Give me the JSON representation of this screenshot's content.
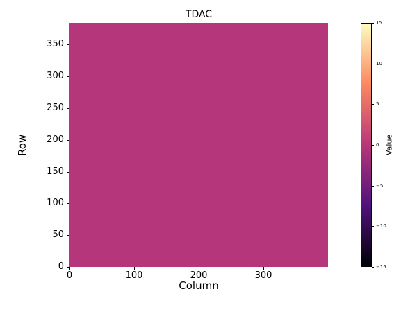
{
  "chart_data": {
    "type": "heatmap",
    "title": "TDAC",
    "xlabel": "Column",
    "ylabel": "Row",
    "x_range": [
      0,
      400
    ],
    "y_range": [
      0,
      384
    ],
    "x_ticks": [
      0,
      100,
      200,
      300
    ],
    "y_ticks": [
      0,
      50,
      100,
      150,
      200,
      250,
      300,
      350
    ],
    "uniform_value": 0,
    "fill_color": "#b5367a",
    "colorbar": {
      "label": "Value",
      "min": -15,
      "max": 15,
      "ticks": [
        15,
        10,
        5,
        0,
        -5,
        -10,
        -15
      ],
      "colormap": "magma",
      "gradient_stops": [
        "#000004",
        "#51127c",
        "#b73779",
        "#fb8861",
        "#fcfdbf"
      ]
    }
  }
}
